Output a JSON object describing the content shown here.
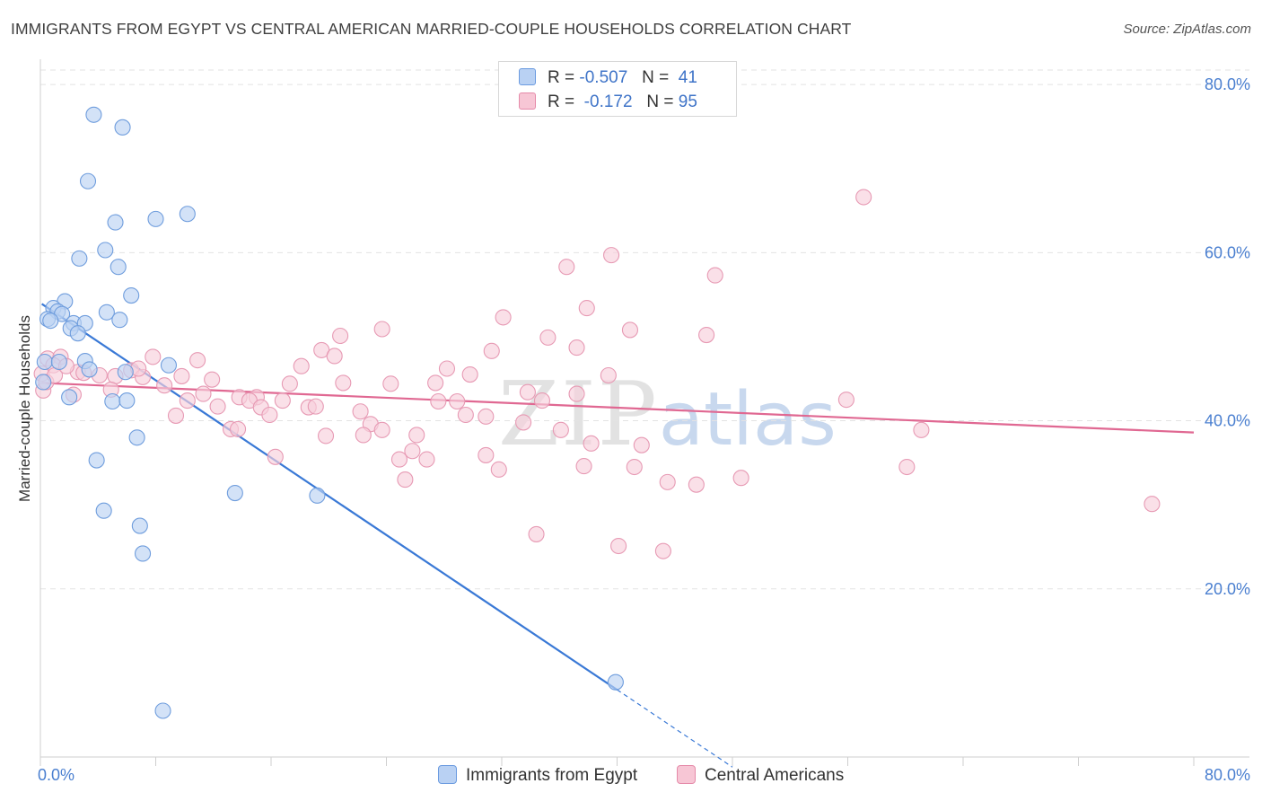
{
  "title": "IMMIGRANTS FROM EGYPT VS CENTRAL AMERICAN MARRIED-COUPLE HOUSEHOLDS CORRELATION CHART",
  "source": "Source: ZipAtlas.com",
  "watermark": {
    "zip": "ZIP",
    "atlas": "atlas"
  },
  "legend": {
    "rows": [
      {
        "r_label": "R =",
        "r_value": "-0.507",
        "n_label": "N =",
        "n_value": "41",
        "color": "#6b9be0",
        "fill": "#b9d1f3"
      },
      {
        "r_label": "R =",
        "r_value": "-0.172",
        "n_label": "N =",
        "n_value": "95",
        "color": "#e58aa9",
        "fill": "#f7c6d5"
      }
    ]
  },
  "chart_data": {
    "type": "scatter",
    "title": "IMMIGRANTS FROM EGYPT VS CENTRAL AMERICAN MARRIED-COUPLE HOUSEHOLDS CORRELATION CHART",
    "xlabel": "",
    "ylabel": "Married-couple Households",
    "xlim": [
      0,
      80
    ],
    "ylim": [
      0,
      83
    ],
    "x_tick_labels": [
      "0.0%",
      "80.0%"
    ],
    "y_ticks": [
      20,
      40,
      60,
      80
    ],
    "y_tick_labels": [
      "20.0%",
      "40.0%",
      "60.0%",
      "80.0%"
    ],
    "grid": true,
    "series": [
      {
        "name": "Immigrants from Egypt",
        "color": "#3a79d6",
        "marker_fill": "#bcd3f2",
        "marker_stroke": "#6f9ddd",
        "trend": {
          "x0": 0.1,
          "y0": 53.9,
          "x1": 40.0,
          "y1": 8.0,
          "dash_to_x": 48,
          "dash_to_y": -1.2
        },
        "points": [
          {
            "x": 3.7,
            "y": 76.4
          },
          {
            "x": 5.7,
            "y": 74.9
          },
          {
            "x": 3.3,
            "y": 68.5
          },
          {
            "x": 10.2,
            "y": 64.6
          },
          {
            "x": 8.0,
            "y": 64.0
          },
          {
            "x": 5.2,
            "y": 63.6
          },
          {
            "x": 4.5,
            "y": 60.3
          },
          {
            "x": 2.7,
            "y": 59.3
          },
          {
            "x": 5.4,
            "y": 58.3
          },
          {
            "x": 6.3,
            "y": 54.9
          },
          {
            "x": 1.7,
            "y": 54.2
          },
          {
            "x": 0.9,
            "y": 53.4
          },
          {
            "x": 1.2,
            "y": 53.0
          },
          {
            "x": 1.5,
            "y": 52.7
          },
          {
            "x": 0.5,
            "y": 52.1
          },
          {
            "x": 0.7,
            "y": 51.9
          },
          {
            "x": 4.6,
            "y": 52.9
          },
          {
            "x": 5.5,
            "y": 52.0
          },
          {
            "x": 2.3,
            "y": 51.6
          },
          {
            "x": 3.1,
            "y": 51.6
          },
          {
            "x": 2.1,
            "y": 51.0
          },
          {
            "x": 2.6,
            "y": 50.4
          },
          {
            "x": 0.3,
            "y": 47.0
          },
          {
            "x": 1.3,
            "y": 47.0
          },
          {
            "x": 3.1,
            "y": 47.1
          },
          {
            "x": 3.4,
            "y": 46.1
          },
          {
            "x": 8.9,
            "y": 46.6
          },
          {
            "x": 5.9,
            "y": 45.8
          },
          {
            "x": 0.2,
            "y": 44.6
          },
          {
            "x": 2.0,
            "y": 42.8
          },
          {
            "x": 5.0,
            "y": 42.3
          },
          {
            "x": 6.0,
            "y": 42.4
          },
          {
            "x": 6.7,
            "y": 38.0
          },
          {
            "x": 3.9,
            "y": 35.3
          },
          {
            "x": 13.5,
            "y": 31.4
          },
          {
            "x": 19.2,
            "y": 31.1
          },
          {
            "x": 4.4,
            "y": 29.3
          },
          {
            "x": 6.9,
            "y": 27.5
          },
          {
            "x": 7.1,
            "y": 24.2
          },
          {
            "x": 39.9,
            "y": 8.9
          },
          {
            "x": 8.5,
            "y": 5.5
          }
        ]
      },
      {
        "name": "Central Americans",
        "color": "#e06892",
        "marker_fill": "#f8d0dc",
        "marker_stroke": "#e79ab4",
        "trend": {
          "x0": 0.1,
          "y0": 44.5,
          "x1": 80.0,
          "y1": 38.6
        },
        "points": [
          {
            "x": 57.1,
            "y": 66.6
          },
          {
            "x": 39.6,
            "y": 59.7
          },
          {
            "x": 36.5,
            "y": 58.3
          },
          {
            "x": 46.8,
            "y": 57.3
          },
          {
            "x": 37.9,
            "y": 53.4
          },
          {
            "x": 32.1,
            "y": 52.3
          },
          {
            "x": 23.7,
            "y": 50.9
          },
          {
            "x": 40.9,
            "y": 50.8
          },
          {
            "x": 46.2,
            "y": 50.2
          },
          {
            "x": 20.8,
            "y": 50.1
          },
          {
            "x": 35.2,
            "y": 49.9
          },
          {
            "x": 37.2,
            "y": 48.7
          },
          {
            "x": 19.5,
            "y": 48.4
          },
          {
            "x": 31.3,
            "y": 48.3
          },
          {
            "x": 20.4,
            "y": 47.7
          },
          {
            "x": 0.5,
            "y": 47.4
          },
          {
            "x": 1.4,
            "y": 47.6
          },
          {
            "x": 7.8,
            "y": 47.6
          },
          {
            "x": 10.9,
            "y": 47.2
          },
          {
            "x": 0.9,
            "y": 46.6
          },
          {
            "x": 18.1,
            "y": 46.5
          },
          {
            "x": 28.2,
            "y": 46.2
          },
          {
            "x": 6.3,
            "y": 46.0
          },
          {
            "x": 2.6,
            "y": 45.8
          },
          {
            "x": 29.8,
            "y": 45.5
          },
          {
            "x": 39.4,
            "y": 45.4
          },
          {
            "x": 4.1,
            "y": 45.4
          },
          {
            "x": 5.2,
            "y": 45.3
          },
          {
            "x": 9.8,
            "y": 45.3
          },
          {
            "x": 7.1,
            "y": 45.2
          },
          {
            "x": 11.9,
            "y": 44.9
          },
          {
            "x": 21.0,
            "y": 44.5
          },
          {
            "x": 24.3,
            "y": 44.4
          },
          {
            "x": 17.3,
            "y": 44.4
          },
          {
            "x": 27.4,
            "y": 44.5
          },
          {
            "x": 8.6,
            "y": 44.2
          },
          {
            "x": 0.2,
            "y": 43.6
          },
          {
            "x": 4.9,
            "y": 43.7
          },
          {
            "x": 33.8,
            "y": 43.4
          },
          {
            "x": 37.2,
            "y": 43.2
          },
          {
            "x": 11.3,
            "y": 43.2
          },
          {
            "x": 2.3,
            "y": 43.1
          },
          {
            "x": 13.8,
            "y": 42.8
          },
          {
            "x": 15.0,
            "y": 42.8
          },
          {
            "x": 14.5,
            "y": 42.4
          },
          {
            "x": 16.8,
            "y": 42.4
          },
          {
            "x": 34.8,
            "y": 42.4
          },
          {
            "x": 10.2,
            "y": 42.4
          },
          {
            "x": 27.6,
            "y": 42.3
          },
          {
            "x": 28.9,
            "y": 42.3
          },
          {
            "x": 55.9,
            "y": 42.5
          },
          {
            "x": 12.3,
            "y": 41.7
          },
          {
            "x": 15.3,
            "y": 41.6
          },
          {
            "x": 18.6,
            "y": 41.6
          },
          {
            "x": 19.1,
            "y": 41.7
          },
          {
            "x": 22.2,
            "y": 41.1
          },
          {
            "x": 15.9,
            "y": 40.7
          },
          {
            "x": 29.5,
            "y": 40.7
          },
          {
            "x": 30.9,
            "y": 40.5
          },
          {
            "x": 9.4,
            "y": 40.6
          },
          {
            "x": 22.9,
            "y": 39.6
          },
          {
            "x": 33.5,
            "y": 39.8
          },
          {
            "x": 13.2,
            "y": 39.0
          },
          {
            "x": 13.7,
            "y": 39.0
          },
          {
            "x": 22.4,
            "y": 38.3
          },
          {
            "x": 23.7,
            "y": 38.9
          },
          {
            "x": 26.1,
            "y": 38.3
          },
          {
            "x": 36.1,
            "y": 38.9
          },
          {
            "x": 61.1,
            "y": 38.9
          },
          {
            "x": 19.8,
            "y": 38.2
          },
          {
            "x": 38.2,
            "y": 37.3
          },
          {
            "x": 41.7,
            "y": 37.1
          },
          {
            "x": 25.8,
            "y": 36.4
          },
          {
            "x": 16.3,
            "y": 35.7
          },
          {
            "x": 30.9,
            "y": 35.9
          },
          {
            "x": 24.9,
            "y": 35.4
          },
          {
            "x": 26.8,
            "y": 35.4
          },
          {
            "x": 37.7,
            "y": 34.6
          },
          {
            "x": 41.2,
            "y": 34.5
          },
          {
            "x": 60.1,
            "y": 34.5
          },
          {
            "x": 31.8,
            "y": 34.2
          },
          {
            "x": 25.3,
            "y": 33.0
          },
          {
            "x": 48.6,
            "y": 33.2
          },
          {
            "x": 43.5,
            "y": 32.7
          },
          {
            "x": 45.5,
            "y": 32.4
          },
          {
            "x": 77.1,
            "y": 30.1
          },
          {
            "x": 34.4,
            "y": 26.5
          },
          {
            "x": 40.1,
            "y": 25.1
          },
          {
            "x": 43.2,
            "y": 24.5
          },
          {
            "x": 0.1,
            "y": 45.6
          },
          {
            "x": 0.4,
            "y": 44.6
          },
          {
            "x": 1.0,
            "y": 45.4
          },
          {
            "x": 1.8,
            "y": 46.5
          },
          {
            "x": 3.0,
            "y": 45.7
          },
          {
            "x": 6.8,
            "y": 46.2
          }
        ]
      }
    ]
  }
}
